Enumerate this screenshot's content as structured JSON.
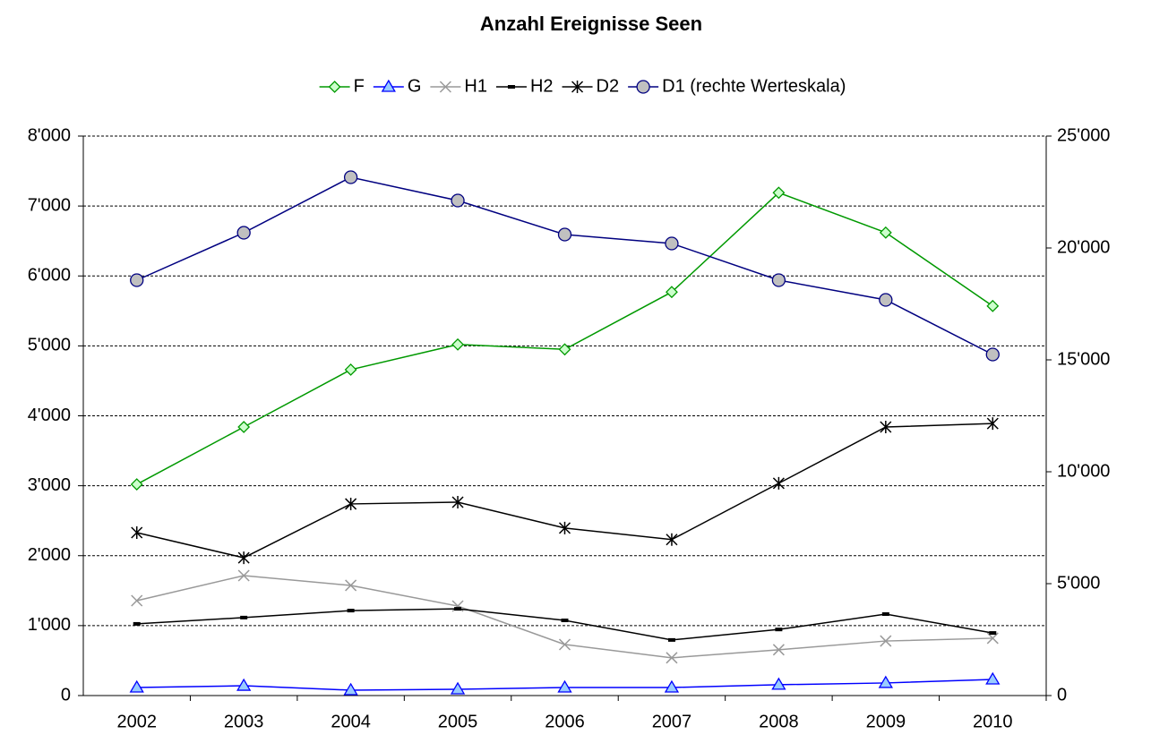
{
  "chart_data": {
    "type": "line",
    "title": "Anzahl Ereignisse Seen",
    "categories": [
      "2002",
      "2003",
      "2004",
      "2005",
      "2006",
      "2007",
      "2008",
      "2009",
      "2010"
    ],
    "ylim": [
      0,
      8000
    ],
    "yticks": [
      0,
      {
        "value": 1000,
        "label": "1'000"
      },
      {
        "value": 2000,
        "label": "2'000"
      },
      {
        "value": 3000,
        "label": "3'000"
      },
      {
        "value": 4000,
        "label": "4'000"
      },
      {
        "value": 5000,
        "label": "5'000"
      },
      {
        "value": 6000,
        "label": "6'000"
      },
      {
        "value": 7000,
        "label": "7'000"
      },
      {
        "value": 8000,
        "label": "8'000"
      }
    ],
    "y2lim": [
      0,
      25000
    ],
    "y2ticks": [
      0,
      {
        "value": 5000,
        "label": "5'000"
      },
      {
        "value": 10000,
        "label": "10'000"
      },
      {
        "value": 15000,
        "label": "15'000"
      },
      {
        "value": 20000,
        "label": "20'000"
      },
      {
        "value": 25000,
        "label": "25'000"
      }
    ],
    "grid": true,
    "legend": "top",
    "series": [
      {
        "name": "F",
        "color": "#009900",
        "marker": "diamond",
        "values": [
          3020,
          3840,
          4660,
          5020,
          4950,
          5770,
          7190,
          6620,
          5570
        ]
      },
      {
        "name": "G",
        "color": "#0000ff",
        "marker": "triangle",
        "values": [
          115,
          140,
          77,
          90,
          115,
          115,
          155,
          180,
          230
        ]
      },
      {
        "name": "H1",
        "color": "#999999",
        "marker": "x",
        "values": [
          1357,
          1715,
          1575,
          1280,
          730,
          540,
          655,
          780,
          820
        ]
      },
      {
        "name": "H2",
        "color": "#000000",
        "marker": "dash",
        "values": [
          1025,
          1115,
          1215,
          1240,
          1075,
          795,
          945,
          1165,
          895
        ]
      },
      {
        "name": "D2",
        "color": "#000000",
        "marker": "star",
        "values": [
          2330,
          1970,
          2740,
          2765,
          2395,
          2230,
          3035,
          3840,
          3890
        ]
      },
      {
        "name": "D1 (rechte Werteskala)",
        "color": "#000080",
        "marker": "circle",
        "axis": "y2",
        "values": [
          18560,
          20680,
          23160,
          22120,
          20600,
          20200,
          18560,
          17680,
          15240
        ]
      }
    ]
  }
}
